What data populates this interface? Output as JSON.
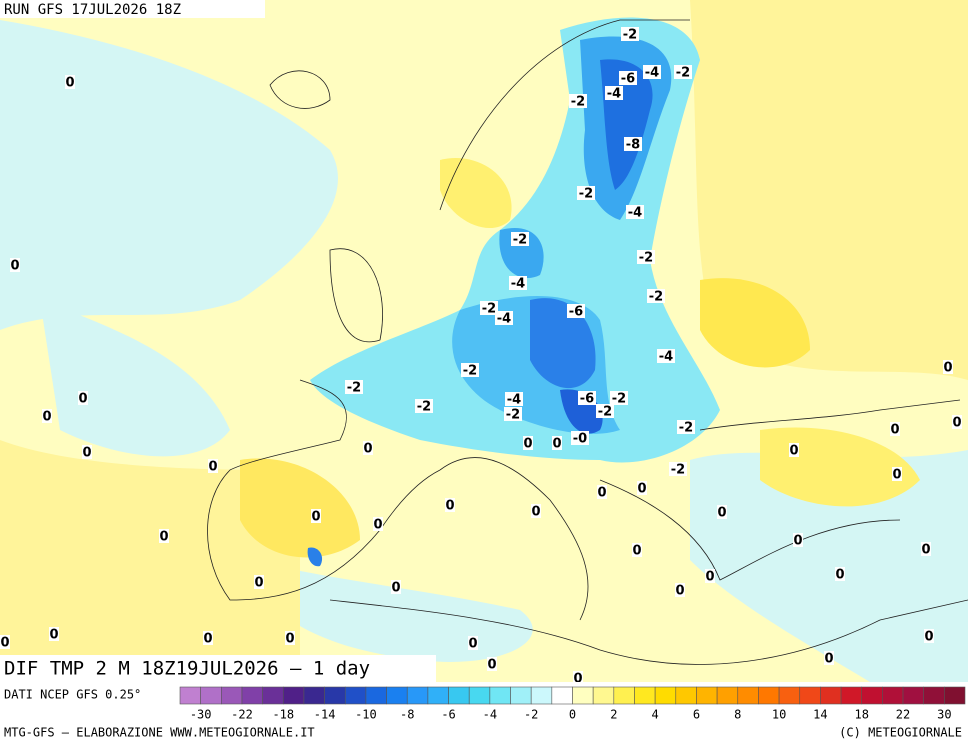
{
  "header": {
    "run": "RUN GFS 17JUL2026 18Z"
  },
  "map": {
    "title": "DIF TMP 2 M 18Z19JUL2026 – 1 day",
    "contour_labels": [
      "0",
      "0",
      "0",
      "0",
      "0",
      "0",
      "0",
      "0",
      "0",
      "0",
      "0",
      "0",
      "0",
      "0",
      "0",
      "0",
      "0",
      "0",
      "0",
      "0",
      "0",
      "0",
      "0",
      "0",
      "0",
      "0",
      "0",
      "0",
      "0",
      "0",
      "0",
      "0",
      "0",
      "0",
      "0",
      "0",
      "0",
      "0",
      "0",
      "-2",
      "-2",
      "-2",
      "-2",
      "-2",
      "-2",
      "-2",
      "-2",
      "-2",
      "-2",
      "-2",
      "-2",
      "-2",
      "-2",
      "-2",
      "-2",
      "-4",
      "-4",
      "-4",
      "-4",
      "-4",
      "-4",
      "-4",
      "-0",
      "-6",
      "-6",
      "-6",
      "-8"
    ]
  },
  "colorbar": {
    "source": "DATI NCEP GFS 0.25°",
    "colors": [
      "#c080d0",
      "#b070c8",
      "#9a58b8",
      "#8040a8",
      "#6a3098",
      "#502088",
      "#3a2890",
      "#2838a8",
      "#2050c8",
      "#1a68e0",
      "#1a80f0",
      "#2898f8",
      "#30b0f8",
      "#38c8f0",
      "#48d8f0",
      "#70e6f4",
      "#a0f0f8",
      "#ccf8fc",
      "#ffffff",
      "#ffffc0",
      "#fff890",
      "#fff050",
      "#ffe820",
      "#ffdc00",
      "#ffc800",
      "#ffb400",
      "#ffa000",
      "#ff8c00",
      "#ff7800",
      "#f86010",
      "#f04818",
      "#e03020",
      "#d01828",
      "#c01030",
      "#b01038",
      "#a01040",
      "#901038",
      "#801030"
    ],
    "labels": [
      "-30",
      "-22",
      "-18",
      "-14",
      "-10",
      "-8",
      "-6",
      "-4",
      "-2",
      "0",
      "2",
      "4",
      "6",
      "8",
      "10",
      "14",
      "18",
      "22",
      "30"
    ]
  },
  "footer": {
    "left": "MTG-GFS – ELABORAZIONE WWW.METEOGIORNALE.IT",
    "right": "(C) METEOGIORNALE"
  }
}
